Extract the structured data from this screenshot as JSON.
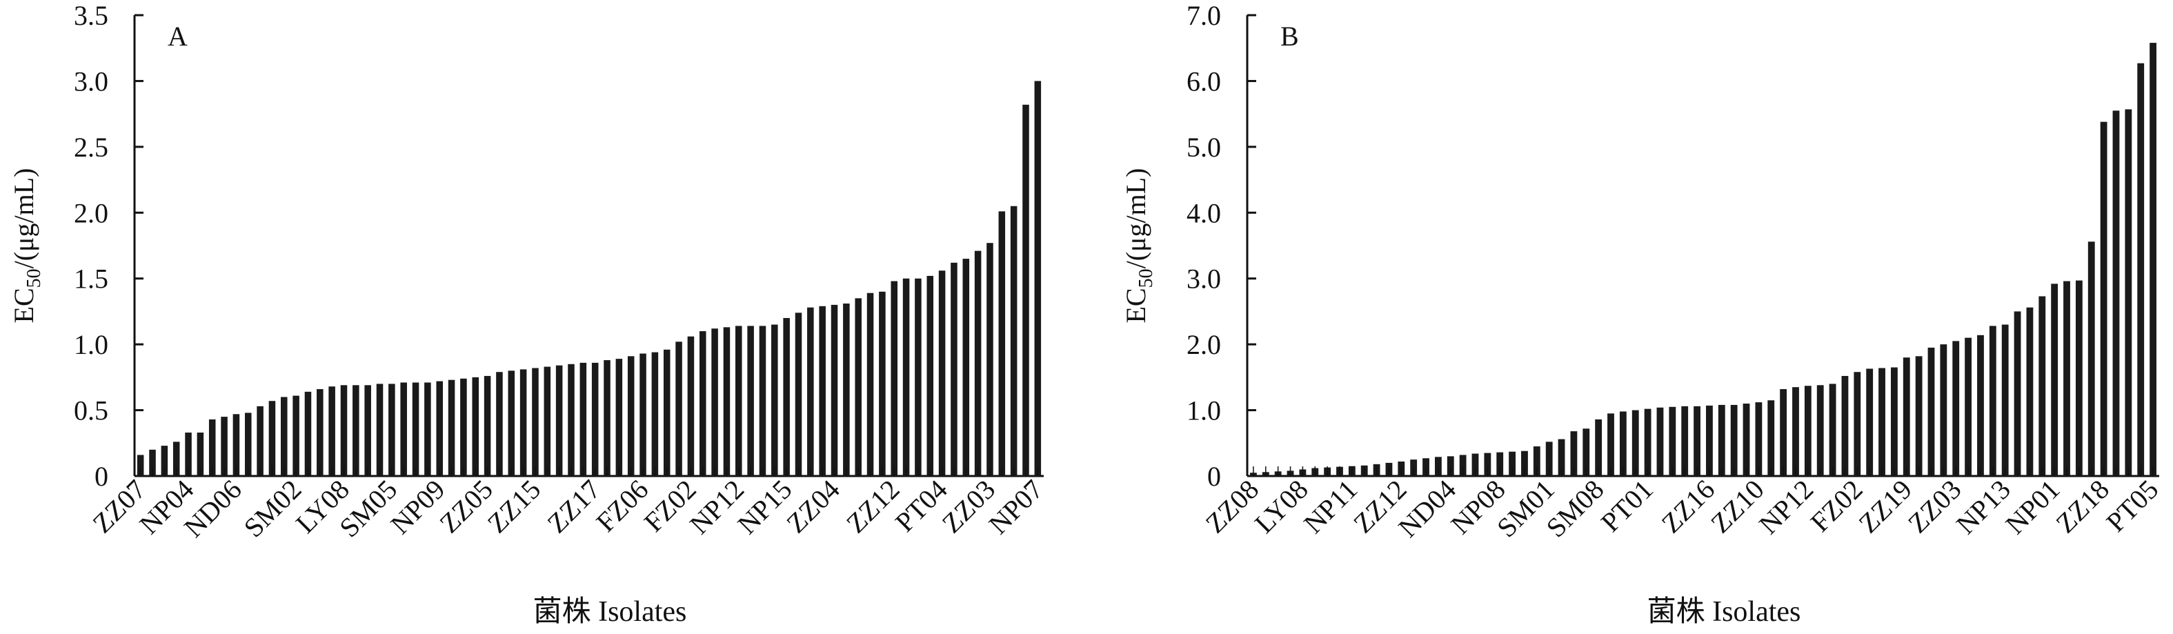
{
  "chart_data": [
    {
      "type": "bar",
      "panel_label": "A",
      "ylabel": "EC50/(μg/mL)",
      "ylabel_main": "EC",
      "ylabel_sub": "50",
      "ylabel_rest": "/(μg/mL)",
      "xlabel": "菌株 Isolates",
      "ylim": [
        0,
        3.5
      ],
      "yticks": [
        "0",
        "0.5",
        "1.0",
        "1.5",
        "2.0",
        "2.5",
        "3.0",
        "3.5"
      ],
      "ytick_values": [
        0,
        0.5,
        1.0,
        1.5,
        2.0,
        2.5,
        3.0,
        3.5
      ],
      "grid": false,
      "xtick_labels": [
        "ZZ07",
        "NP04",
        "ND06",
        "SM02",
        "LY08",
        "SM05",
        "NP09",
        "ZZ05",
        "ZZ15",
        "ZZ17",
        "FZ06",
        "FZ02",
        "NP12",
        "NP15",
        "ZZ04",
        "ZZ12",
        "PT04",
        "ZZ03",
        "NP07"
      ],
      "values": [
        0.16,
        0.2,
        0.23,
        0.26,
        0.33,
        0.33,
        0.43,
        0.45,
        0.47,
        0.48,
        0.53,
        0.57,
        0.6,
        0.61,
        0.64,
        0.66,
        0.68,
        0.69,
        0.69,
        0.69,
        0.7,
        0.7,
        0.71,
        0.71,
        0.71,
        0.72,
        0.73,
        0.74,
        0.75,
        0.76,
        0.79,
        0.8,
        0.81,
        0.82,
        0.83,
        0.84,
        0.85,
        0.86,
        0.86,
        0.88,
        0.89,
        0.91,
        0.93,
        0.94,
        0.96,
        1.02,
        1.06,
        1.1,
        1.12,
        1.13,
        1.14,
        1.14,
        1.14,
        1.15,
        1.2,
        1.24,
        1.28,
        1.29,
        1.3,
        1.31,
        1.35,
        1.39,
        1.4,
        1.48,
        1.5,
        1.5,
        1.52,
        1.56,
        1.62,
        1.65,
        1.71,
        1.77,
        2.01,
        2.05,
        2.82,
        3.0
      ]
    },
    {
      "type": "bar",
      "panel_label": "B",
      "ylabel": "EC50/(μg/mL)",
      "ylabel_main": "EC",
      "ylabel_sub": "50",
      "ylabel_rest": "/(μg/mL)",
      "xlabel": "菌株 Isolates",
      "ylim": [
        0,
        7.0
      ],
      "yticks": [
        "0",
        "1.0",
        "2.0",
        "3.0",
        "4.0",
        "5.0",
        "6.0",
        "7.0"
      ],
      "ytick_values": [
        0,
        1,
        2,
        3,
        4,
        5,
        6,
        7
      ],
      "grid": false,
      "xtick_labels": [
        "ZZ08",
        "LY08",
        "NP11",
        "ZZ12",
        "ND04",
        "NP08",
        "SM01",
        "SM08",
        "PT01",
        "ZZ16",
        "ZZ10",
        "NP12",
        "FZ02",
        "ZZ19",
        "ZZ03",
        "NP13",
        "NP01",
        "ZZ18",
        "PT05"
      ],
      "values": [
        0.05,
        0.06,
        0.07,
        0.08,
        0.1,
        0.12,
        0.13,
        0.14,
        0.15,
        0.16,
        0.18,
        0.2,
        0.22,
        0.25,
        0.27,
        0.29,
        0.3,
        0.32,
        0.34,
        0.35,
        0.36,
        0.37,
        0.38,
        0.45,
        0.52,
        0.56,
        0.68,
        0.72,
        0.86,
        0.95,
        0.98,
        1.0,
        1.02,
        1.04,
        1.05,
        1.06,
        1.06,
        1.07,
        1.08,
        1.08,
        1.1,
        1.12,
        1.15,
        1.32,
        1.35,
        1.37,
        1.38,
        1.4,
        1.52,
        1.58,
        1.63,
        1.64,
        1.65,
        1.8,
        1.82,
        1.95,
        2.0,
        2.05,
        2.1,
        2.14,
        2.28,
        2.3,
        2.5,
        2.56,
        2.73,
        2.92,
        2.96,
        2.97,
        3.56,
        5.38,
        5.55,
        5.57,
        6.27,
        6.58
      ]
    }
  ]
}
